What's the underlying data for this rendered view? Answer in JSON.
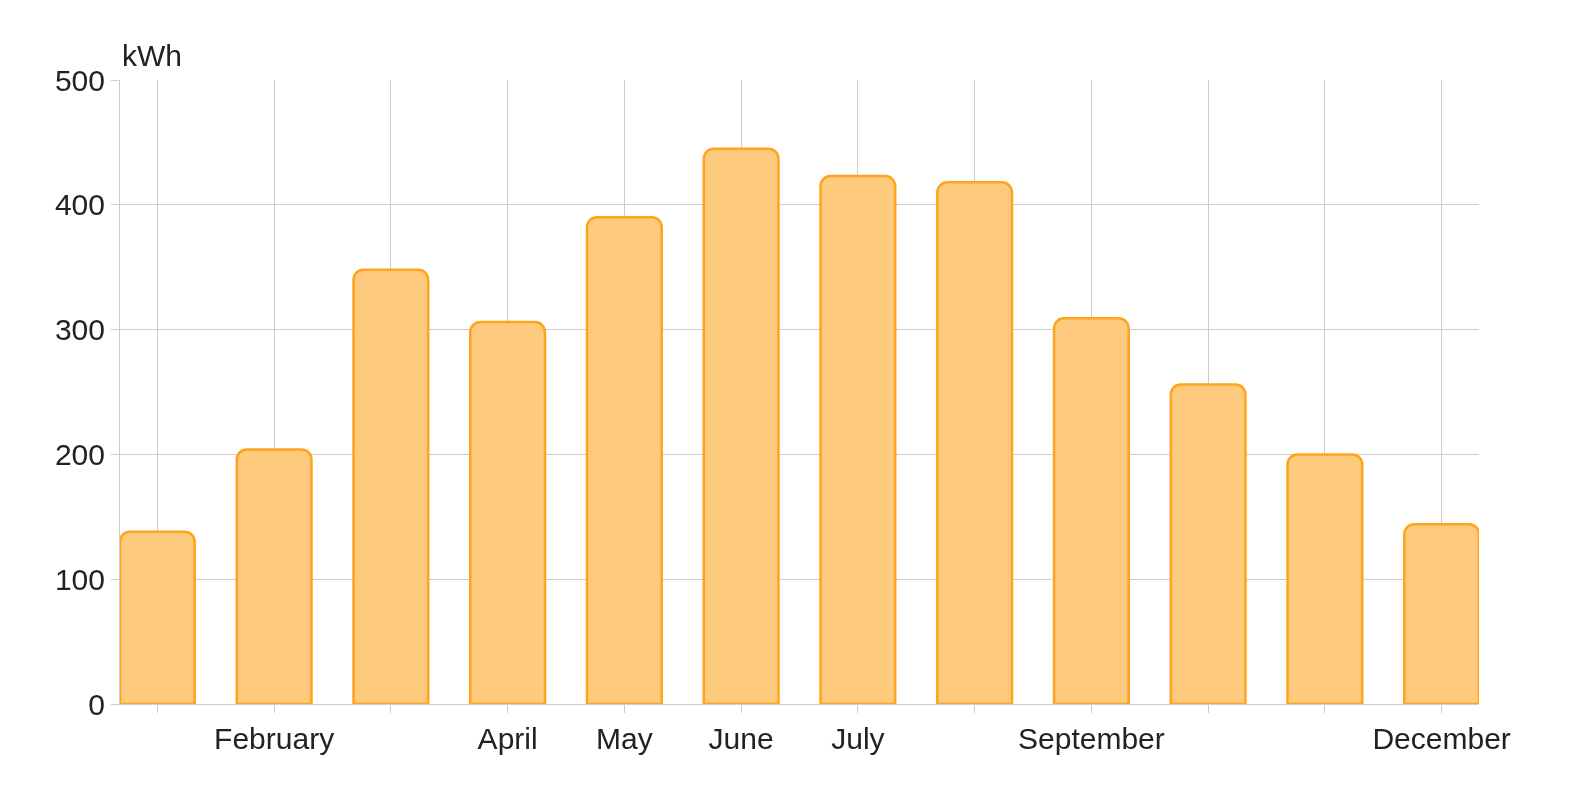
{
  "chart_data": {
    "type": "bar",
    "ylabel": "kWh",
    "categories": [
      null,
      "February",
      null,
      "April",
      "May",
      "June",
      "July",
      null,
      "September",
      null,
      null,
      "December"
    ],
    "values": [
      138,
      204,
      348,
      306,
      390,
      445,
      423,
      418,
      309,
      256,
      200,
      144
    ],
    "color": "#fdca7e",
    "ylim": [
      0,
      500
    ],
    "yticks": [
      0,
      100,
      200,
      300,
      400,
      500
    ],
    "grid": true,
    "legend": false
  }
}
